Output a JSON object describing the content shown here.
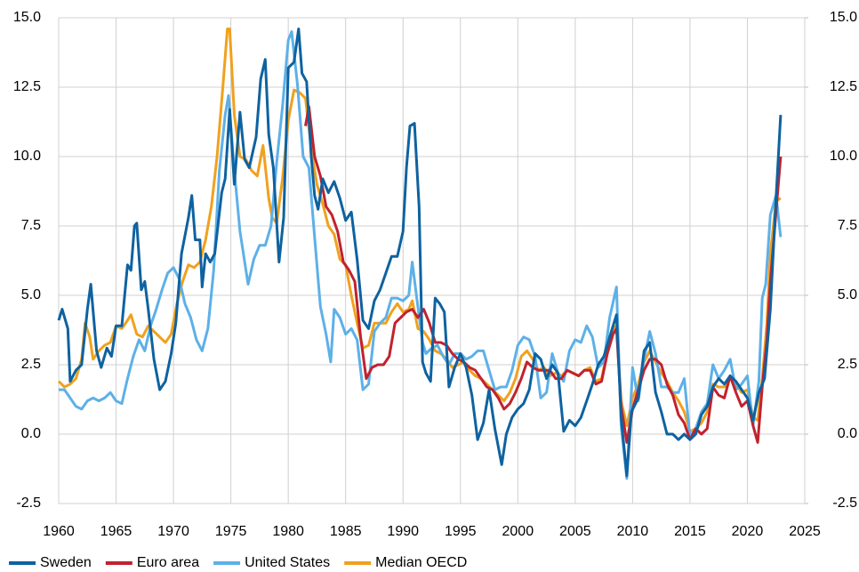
{
  "chart_data": {
    "type": "line",
    "xlim": [
      1960,
      2025
    ],
    "xticks": [
      1960,
      1965,
      1970,
      1975,
      1980,
      1985,
      1990,
      1995,
      2000,
      2005,
      2010,
      2015,
      2020,
      2025
    ],
    "ylim": [
      -2.5,
      15
    ],
    "yticks": [
      -2.5,
      {
        "value": 0,
        "label": "0.0"
      },
      2.5,
      {
        "value": 5,
        "label": "5.0"
      },
      7.5,
      {
        "value": 10,
        "label": "10.0"
      },
      12.5,
      {
        "value": 15,
        "label": "15.0"
      }
    ],
    "y2lim": [
      -2.5,
      15
    ],
    "y2ticks": [
      -2.5,
      {
        "value": 0,
        "label": "0.0"
      },
      2.5,
      {
        "value": 5,
        "label": "5.0"
      },
      7.5,
      {
        "value": 10,
        "label": "10.0"
      },
      12.5,
      {
        "value": 15,
        "label": "15.0"
      }
    ],
    "grid": true,
    "legend": "bottom",
    "series": [
      {
        "name": "Sweden",
        "color": "#0e62a0",
        "x": [
          1960,
          1960.3,
          1960.8,
          1961,
          1961.5,
          1962,
          1962.5,
          1962.8,
          1963.3,
          1963.7,
          1964.2,
          1964.6,
          1965,
          1965.5,
          1966,
          1966.3,
          1966.6,
          1966.8,
          1967.2,
          1967.5,
          1967.8,
          1968.3,
          1968.8,
          1969.3,
          1969.8,
          1970.2,
          1970.7,
          1971.3,
          1971.6,
          1971.9,
          1972.3,
          1972.5,
          1972.8,
          1973.2,
          1973.6,
          1974.2,
          1974.5,
          1974.9,
          1975.3,
          1975.8,
          1976.2,
          1976.6,
          1977.2,
          1977.6,
          1978,
          1978.3,
          1978.7,
          1979.2,
          1979.6,
          1980,
          1980.5,
          1980.9,
          1981.2,
          1981.6,
          1982,
          1982.3,
          1982.6,
          1983,
          1983.5,
          1984,
          1984.5,
          1985,
          1985.5,
          1986,
          1986.5,
          1987,
          1987.5,
          1988,
          1988.5,
          1989,
          1989.5,
          1990,
          1990.3,
          1990.6,
          1991,
          1991.4,
          1991.7,
          1992,
          1992.4,
          1992.8,
          1993.2,
          1993.6,
          1994,
          1994.5,
          1995,
          1995.5,
          1996,
          1996.5,
          1997,
          1997.5,
          1998,
          1998.6,
          1999,
          1999.5,
          2000,
          2000.5,
          2001,
          2001.5,
          2002,
          2002.5,
          2003,
          2003.5,
          2004,
          2004.5,
          2005,
          2005.5,
          2006,
          2006.5,
          2007,
          2007.5,
          2008,
          2008.6,
          2009,
          2009.5,
          2009.9,
          2010.5,
          2011,
          2011.5,
          2012,
          2012.5,
          2013,
          2013.5,
          2014,
          2014.5,
          2015,
          2015.5,
          2016,
          2016.5,
          2017,
          2017.5,
          2018,
          2018.5,
          2019,
          2019.5,
          2020,
          2020.5,
          2021,
          2021.5,
          2022,
          2022.5,
          2022.9
        ],
        "values": [
          4.1,
          4.5,
          3.8,
          1.9,
          2.3,
          2.5,
          4.5,
          5.4,
          3.0,
          2.4,
          3.1,
          2.8,
          3.9,
          3.9,
          6.1,
          5.9,
          7.5,
          7.6,
          5.2,
          5.5,
          4.5,
          2.7,
          1.6,
          1.9,
          2.9,
          4.0,
          6.5,
          7.8,
          8.6,
          7.0,
          7.0,
          5.3,
          6.5,
          6.2,
          6.5,
          8.7,
          9.2,
          11.7,
          9.0,
          11.6,
          9.9,
          9.6,
          10.7,
          12.8,
          13.5,
          10.8,
          9.6,
          6.2,
          7.8,
          13.2,
          13.4,
          14.6,
          13.0,
          12.7,
          10.0,
          8.6,
          8.1,
          9.2,
          8.7,
          9.1,
          8.5,
          7.7,
          8.0,
          6.3,
          4.1,
          3.8,
          4.8,
          5.2,
          5.8,
          6.4,
          6.4,
          7.3,
          9.6,
          11.1,
          11.2,
          8.2,
          2.6,
          2.2,
          1.9,
          4.9,
          4.7,
          4.4,
          1.7,
          2.4,
          2.9,
          2.4,
          1.4,
          -0.2,
          0.4,
          1.6,
          0.2,
          -1.1,
          0.0,
          0.6,
          0.9,
          1.1,
          1.6,
          2.9,
          2.7,
          2.0,
          2.5,
          2.2,
          0.1,
          0.5,
          0.3,
          0.6,
          1.2,
          1.8,
          2.5,
          2.8,
          3.5,
          4.3,
          0.6,
          -1.5,
          0.8,
          1.3,
          3.0,
          3.3,
          1.5,
          0.8,
          0.0,
          0.0,
          -0.2,
          0.0,
          -0.2,
          0.0,
          0.7,
          1.0,
          1.7,
          2.0,
          1.8,
          2.1,
          1.9,
          1.6,
          1.3,
          0.5,
          1.5,
          2.0,
          4.5,
          8.5,
          11.5
        ]
      },
      {
        "name": "Euro area",
        "color": "#c0222f",
        "x": [
          1981.5,
          1981.8,
          1982.3,
          1982.8,
          1983.3,
          1983.8,
          1984.3,
          1984.8,
          1985.3,
          1985.8,
          1986.3,
          1986.8,
          1987.3,
          1987.8,
          1988.3,
          1988.8,
          1989.3,
          1989.8,
          1990.3,
          1990.8,
          1991.3,
          1991.8,
          1992.3,
          1992.8,
          1993.3,
          1993.8,
          1994.3,
          1994.8,
          1995.3,
          1995.8,
          1996.3,
          1996.8,
          1997.3,
          1997.8,
          1998.3,
          1998.8,
          1999.3,
          1999.8,
          2000.3,
          2000.8,
          2001.3,
          2001.8,
          2002.3,
          2002.8,
          2003.3,
          2003.8,
          2004.3,
          2004.8,
          2005.3,
          2005.8,
          2006.3,
          2006.8,
          2007.3,
          2007.8,
          2008.3,
          2008.6,
          2009,
          2009.5,
          2010,
          2010.5,
          2011,
          2011.5,
          2012,
          2012.5,
          2013,
          2013.5,
          2014,
          2014.5,
          2015,
          2015.5,
          2016,
          2016.5,
          2017,
          2017.5,
          2018,
          2018.5,
          2019,
          2019.5,
          2020,
          2020.5,
          2020.9,
          2021.3,
          2021.7,
          2022,
          2022.5,
          2022.9
        ],
        "values": [
          11.1,
          11.8,
          10.0,
          9.3,
          8.2,
          7.9,
          7.3,
          6.2,
          5.9,
          5.5,
          3.5,
          2.0,
          2.4,
          2.5,
          2.5,
          2.8,
          4.0,
          4.2,
          4.4,
          4.5,
          4.2,
          4.5,
          4.0,
          3.3,
          3.3,
          3.2,
          2.9,
          2.7,
          2.6,
          2.4,
          2.3,
          2.0,
          1.7,
          1.6,
          1.3,
          0.9,
          1.1,
          1.5,
          2.0,
          2.6,
          2.4,
          2.3,
          2.3,
          2.3,
          2.0,
          2.0,
          2.3,
          2.2,
          2.1,
          2.3,
          2.3,
          1.8,
          1.9,
          2.9,
          3.6,
          3.8,
          1.0,
          -0.3,
          0.9,
          1.6,
          2.3,
          2.7,
          2.7,
          2.5,
          1.8,
          1.4,
          0.7,
          0.4,
          -0.2,
          0.2,
          0.0,
          0.2,
          1.7,
          1.4,
          1.3,
          2.1,
          1.5,
          1.0,
          1.2,
          0.3,
          -0.3,
          1.7,
          3.4,
          5.5,
          8.0,
          10.0
        ]
      },
      {
        "name": "United States",
        "color": "#5db0e8",
        "x": [
          1960,
          1960.5,
          1961,
          1961.5,
          1962,
          1962.5,
          1963,
          1963.5,
          1964,
          1964.5,
          1965,
          1965.5,
          1966,
          1966.5,
          1967,
          1967.5,
          1968,
          1968.5,
          1969,
          1969.5,
          1970,
          1970.5,
          1971,
          1971.5,
          1972,
          1972.5,
          1973,
          1973.5,
          1974,
          1974.5,
          1974.8,
          1975.3,
          1975.8,
          1976.5,
          1977,
          1977.5,
          1978,
          1978.5,
          1979,
          1979.5,
          1980,
          1980.3,
          1980.8,
          1981.3,
          1981.8,
          1982.3,
          1982.8,
          1983.3,
          1983.7,
          1984,
          1984.5,
          1985,
          1985.5,
          1986,
          1986.5,
          1987,
          1987.5,
          1988,
          1988.5,
          1989,
          1989.5,
          1990,
          1990.5,
          1990.8,
          1991.2,
          1991.7,
          1992,
          1992.5,
          1993,
          1993.5,
          1994,
          1994.5,
          1995,
          1995.5,
          1996,
          1996.5,
          1997,
          1997.5,
          1998,
          1998.5,
          1999,
          1999.5,
          2000,
          2000.5,
          2001,
          2001.5,
          2002,
          2002.5,
          2003,
          2003.5,
          2004,
          2004.5,
          2005,
          2005.5,
          2006,
          2006.5,
          2007,
          2007.5,
          2008,
          2008.6,
          2009,
          2009.5,
          2010,
          2010.5,
          2011,
          2011.5,
          2012,
          2012.5,
          2013,
          2013.5,
          2014,
          2014.5,
          2015,
          2015.5,
          2016,
          2016.5,
          2017,
          2017.5,
          2018,
          2018.5,
          2019,
          2019.5,
          2020,
          2020.5,
          2021,
          2021.3,
          2021.6,
          2022,
          2022.5,
          2022.9
        ],
        "values": [
          1.6,
          1.6,
          1.3,
          1.0,
          0.9,
          1.2,
          1.3,
          1.2,
          1.3,
          1.5,
          1.2,
          1.1,
          2.0,
          2.8,
          3.4,
          3.0,
          3.9,
          4.5,
          5.2,
          5.8,
          6.0,
          5.6,
          4.7,
          4.2,
          3.4,
          3.0,
          3.8,
          5.9,
          9.5,
          11.5,
          12.2,
          9.5,
          7.3,
          5.4,
          6.3,
          6.8,
          6.8,
          7.5,
          9.8,
          11.8,
          14.2,
          14.5,
          12.6,
          10.0,
          9.6,
          7.1,
          4.6,
          3.6,
          2.6,
          4.5,
          4.2,
          3.6,
          3.8,
          3.4,
          1.6,
          1.8,
          3.7,
          4.0,
          4.2,
          4.9,
          4.9,
          4.8,
          5.0,
          6.2,
          4.9,
          3.3,
          2.9,
          3.1,
          3.2,
          2.8,
          2.5,
          2.9,
          2.9,
          2.7,
          2.8,
          3.0,
          3.0,
          2.3,
          1.6,
          1.7,
          1.7,
          2.3,
          3.2,
          3.5,
          3.4,
          2.8,
          1.3,
          1.5,
          2.9,
          2.2,
          1.9,
          3.0,
          3.4,
          3.3,
          3.9,
          3.5,
          2.4,
          2.6,
          4.2,
          5.3,
          0.3,
          -1.6,
          2.4,
          1.2,
          2.7,
          3.7,
          2.9,
          1.7,
          1.7,
          1.5,
          1.5,
          2.0,
          -0.1,
          0.2,
          0.8,
          1.1,
          2.5,
          2.0,
          2.3,
          2.7,
          1.6,
          1.8,
          2.1,
          0.3,
          1.9,
          4.9,
          5.4,
          7.9,
          8.6,
          7.1
        ]
      },
      {
        "name": "Median OECD",
        "color": "#f0a11d",
        "x": [
          1960,
          1960.5,
          1961,
          1961.5,
          1962,
          1962.3,
          1962.7,
          1963,
          1963.5,
          1964,
          1964.5,
          1965,
          1965.5,
          1966,
          1966.3,
          1966.8,
          1967.3,
          1967.8,
          1968.3,
          1968.8,
          1969.3,
          1969.8,
          1970.3,
          1970.8,
          1971.3,
          1971.8,
          1972.3,
          1972.8,
          1973.3,
          1973.8,
          1974.3,
          1974.7,
          1974.9,
          1975.3,
          1975.8,
          1976.3,
          1976.8,
          1977.3,
          1977.8,
          1978.3,
          1978.6,
          1979,
          1979.5,
          1980,
          1980.5,
          1981,
          1981.5,
          1982,
          1982.5,
          1983,
          1983.5,
          1984,
          1984.5,
          1985,
          1985.5,
          1986,
          1986.5,
          1987,
          1987.5,
          1988,
          1988.5,
          1989,
          1989.5,
          1990,
          1990.5,
          1990.8,
          1991.3,
          1991.8,
          1992.3,
          1992.8,
          1993.3,
          1993.8,
          1994.3,
          1994.8,
          1995.3,
          1995.8,
          1996.3,
          1996.8,
          1997.3,
          1997.8,
          1998.3,
          1998.8,
          1999.3,
          1999.8,
          2000.3,
          2000.8,
          2001.3,
          2001.8,
          2002.3,
          2002.8,
          2003.3,
          2003.8,
          2004.3,
          2004.8,
          2005.3,
          2005.8,
          2006.3,
          2006.8,
          2007.3,
          2007.8,
          2008.3,
          2008.6,
          2009,
          2009.5,
          2010,
          2010.5,
          2011,
          2011.5,
          2012,
          2012.5,
          2013,
          2013.5,
          2014,
          2014.5,
          2015,
          2015.5,
          2016,
          2016.5,
          2017,
          2017.5,
          2018,
          2018.5,
          2019,
          2019.5,
          2020,
          2020.5,
          2020.9,
          2021.3,
          2021.7,
          2022,
          2022.5,
          2022.9
        ],
        "values": [
          1.9,
          1.7,
          1.8,
          2.0,
          2.7,
          4.0,
          3.5,
          2.7,
          3.0,
          3.2,
          3.3,
          3.9,
          3.8,
          4.1,
          4.3,
          3.6,
          3.5,
          3.9,
          3.7,
          3.5,
          3.3,
          3.6,
          4.7,
          5.5,
          6.1,
          6.0,
          6.2,
          7.0,
          8.2,
          10.0,
          12.5,
          14.6,
          14.6,
          11.5,
          10.0,
          9.9,
          9.5,
          9.3,
          10.4,
          8.5,
          7.8,
          7.6,
          9.2,
          11.3,
          12.4,
          12.3,
          12.1,
          10.3,
          9.0,
          8.3,
          7.5,
          7.2,
          6.3,
          6.1,
          5.0,
          4.0,
          3.1,
          3.2,
          4.0,
          4.0,
          4.0,
          4.4,
          4.7,
          4.4,
          4.5,
          4.8,
          3.8,
          3.7,
          3.4,
          3.0,
          2.9,
          2.7,
          2.4,
          2.5,
          2.6,
          2.3,
          2.1,
          2.0,
          1.8,
          1.6,
          1.4,
          1.2,
          1.5,
          2.0,
          2.8,
          3.0,
          2.7,
          2.3,
          2.4,
          2.1,
          2.2,
          2.1,
          2.3,
          2.2,
          2.1,
          2.3,
          2.4,
          1.9,
          2.0,
          3.0,
          3.8,
          3.9,
          1.2,
          0.3,
          1.3,
          1.8,
          2.6,
          3.0,
          2.6,
          2.2,
          1.9,
          1.5,
          1.2,
          0.8,
          0.1,
          0.2,
          0.4,
          0.8,
          1.8,
          1.7,
          1.7,
          2.1,
          1.8,
          1.5,
          1.6,
          0.6,
          0.5,
          2.0,
          4.0,
          6.5,
          8.4,
          8.5
        ]
      }
    ]
  }
}
